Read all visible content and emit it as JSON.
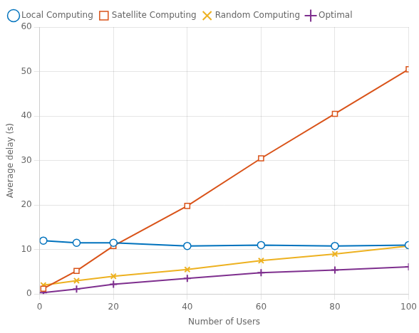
{
  "chart_data": {
    "type": "line",
    "x": [
      1,
      10,
      20,
      40,
      60,
      80,
      100
    ],
    "series": [
      {
        "name": "Local Computing",
        "color": "#0072BD",
        "marker": "circle",
        "values": [
          12.0,
          11.5,
          11.5,
          10.8,
          11.0,
          10.8,
          11.0
        ]
      },
      {
        "name": "Satellite Computing",
        "color": "#D95319",
        "marker": "square",
        "values": [
          1.2,
          5.2,
          10.8,
          19.8,
          30.5,
          40.5,
          50.5
        ]
      },
      {
        "name": "Random Computing",
        "color": "#EDB120",
        "marker": "x",
        "values": [
          2.0,
          3.0,
          4.0,
          5.5,
          7.5,
          9.0,
          10.8
        ]
      },
      {
        "name": "Optimal",
        "color": "#7E2F8E",
        "marker": "plus",
        "values": [
          0.3,
          1.1,
          2.2,
          3.5,
          4.8,
          5.4,
          6.1
        ]
      }
    ],
    "x_label": "Number of Users",
    "y_label": "Average delay (s)",
    "xlim": [
      0,
      100
    ],
    "xticks": [
      0,
      20,
      40,
      60,
      80,
      100
    ],
    "ylim": [
      0,
      60
    ],
    "yticks": [
      0,
      10,
      20,
      30,
      40,
      50,
      60
    ],
    "grid": true,
    "legend": "upper left"
  }
}
